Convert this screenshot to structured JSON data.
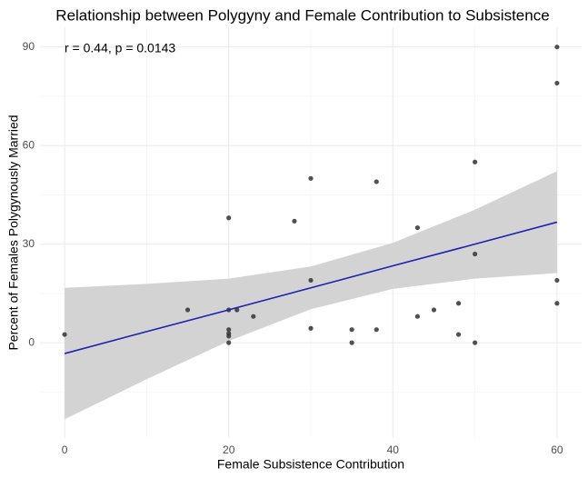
{
  "chart_data": {
    "type": "scatter",
    "title": "Relationship between Polygyny and Female Contribution to Subsistence",
    "x_label": "Female Subsistence Contribution",
    "y_label": "Percent of Females Polygynously Married",
    "annotation": "r = 0.44, p = 0.0143",
    "x": [
      0,
      15,
      20,
      20,
      20,
      20,
      20,
      20,
      21,
      23,
      28,
      30,
      30,
      30,
      35,
      35,
      38,
      38,
      43,
      43,
      45,
      48,
      48,
      50,
      50,
      50,
      60,
      60,
      60,
      60
    ],
    "values": [
      2.5,
      10,
      38,
      10,
      4,
      2.8,
      2,
      0,
      10,
      8,
      37,
      50,
      19,
      4.4,
      4,
      0,
      49,
      4,
      35,
      8,
      10,
      12,
      2.5,
      55,
      27,
      0,
      90,
      79,
      19,
      12
    ],
    "color": "#333333",
    "fit": {
      "x": [
        0,
        10,
        20,
        30,
        40,
        50,
        60
      ],
      "y": [
        -3.3,
        3.4,
        10,
        16.7,
        23.4,
        30,
        36.7
      ],
      "upper": [
        16.7,
        17.9,
        19.5,
        23.2,
        30.4,
        40.5,
        52.2
      ],
      "lower": [
        -23.3,
        -11.1,
        0.5,
        10.2,
        16.4,
        19.5,
        21.2
      ],
      "color": "#1f1fb4",
      "band_color": "#d3d3d3"
    },
    "xlim": [
      -3,
      63
    ],
    "ylim": [
      -29,
      96
    ],
    "xticks": [
      0,
      20,
      40,
      60
    ],
    "yticks": [
      0,
      30,
      60,
      90
    ],
    "xminor": [
      10,
      30,
      50
    ],
    "yminor": [
      -15,
      15,
      45,
      75
    ],
    "grid": true
  }
}
